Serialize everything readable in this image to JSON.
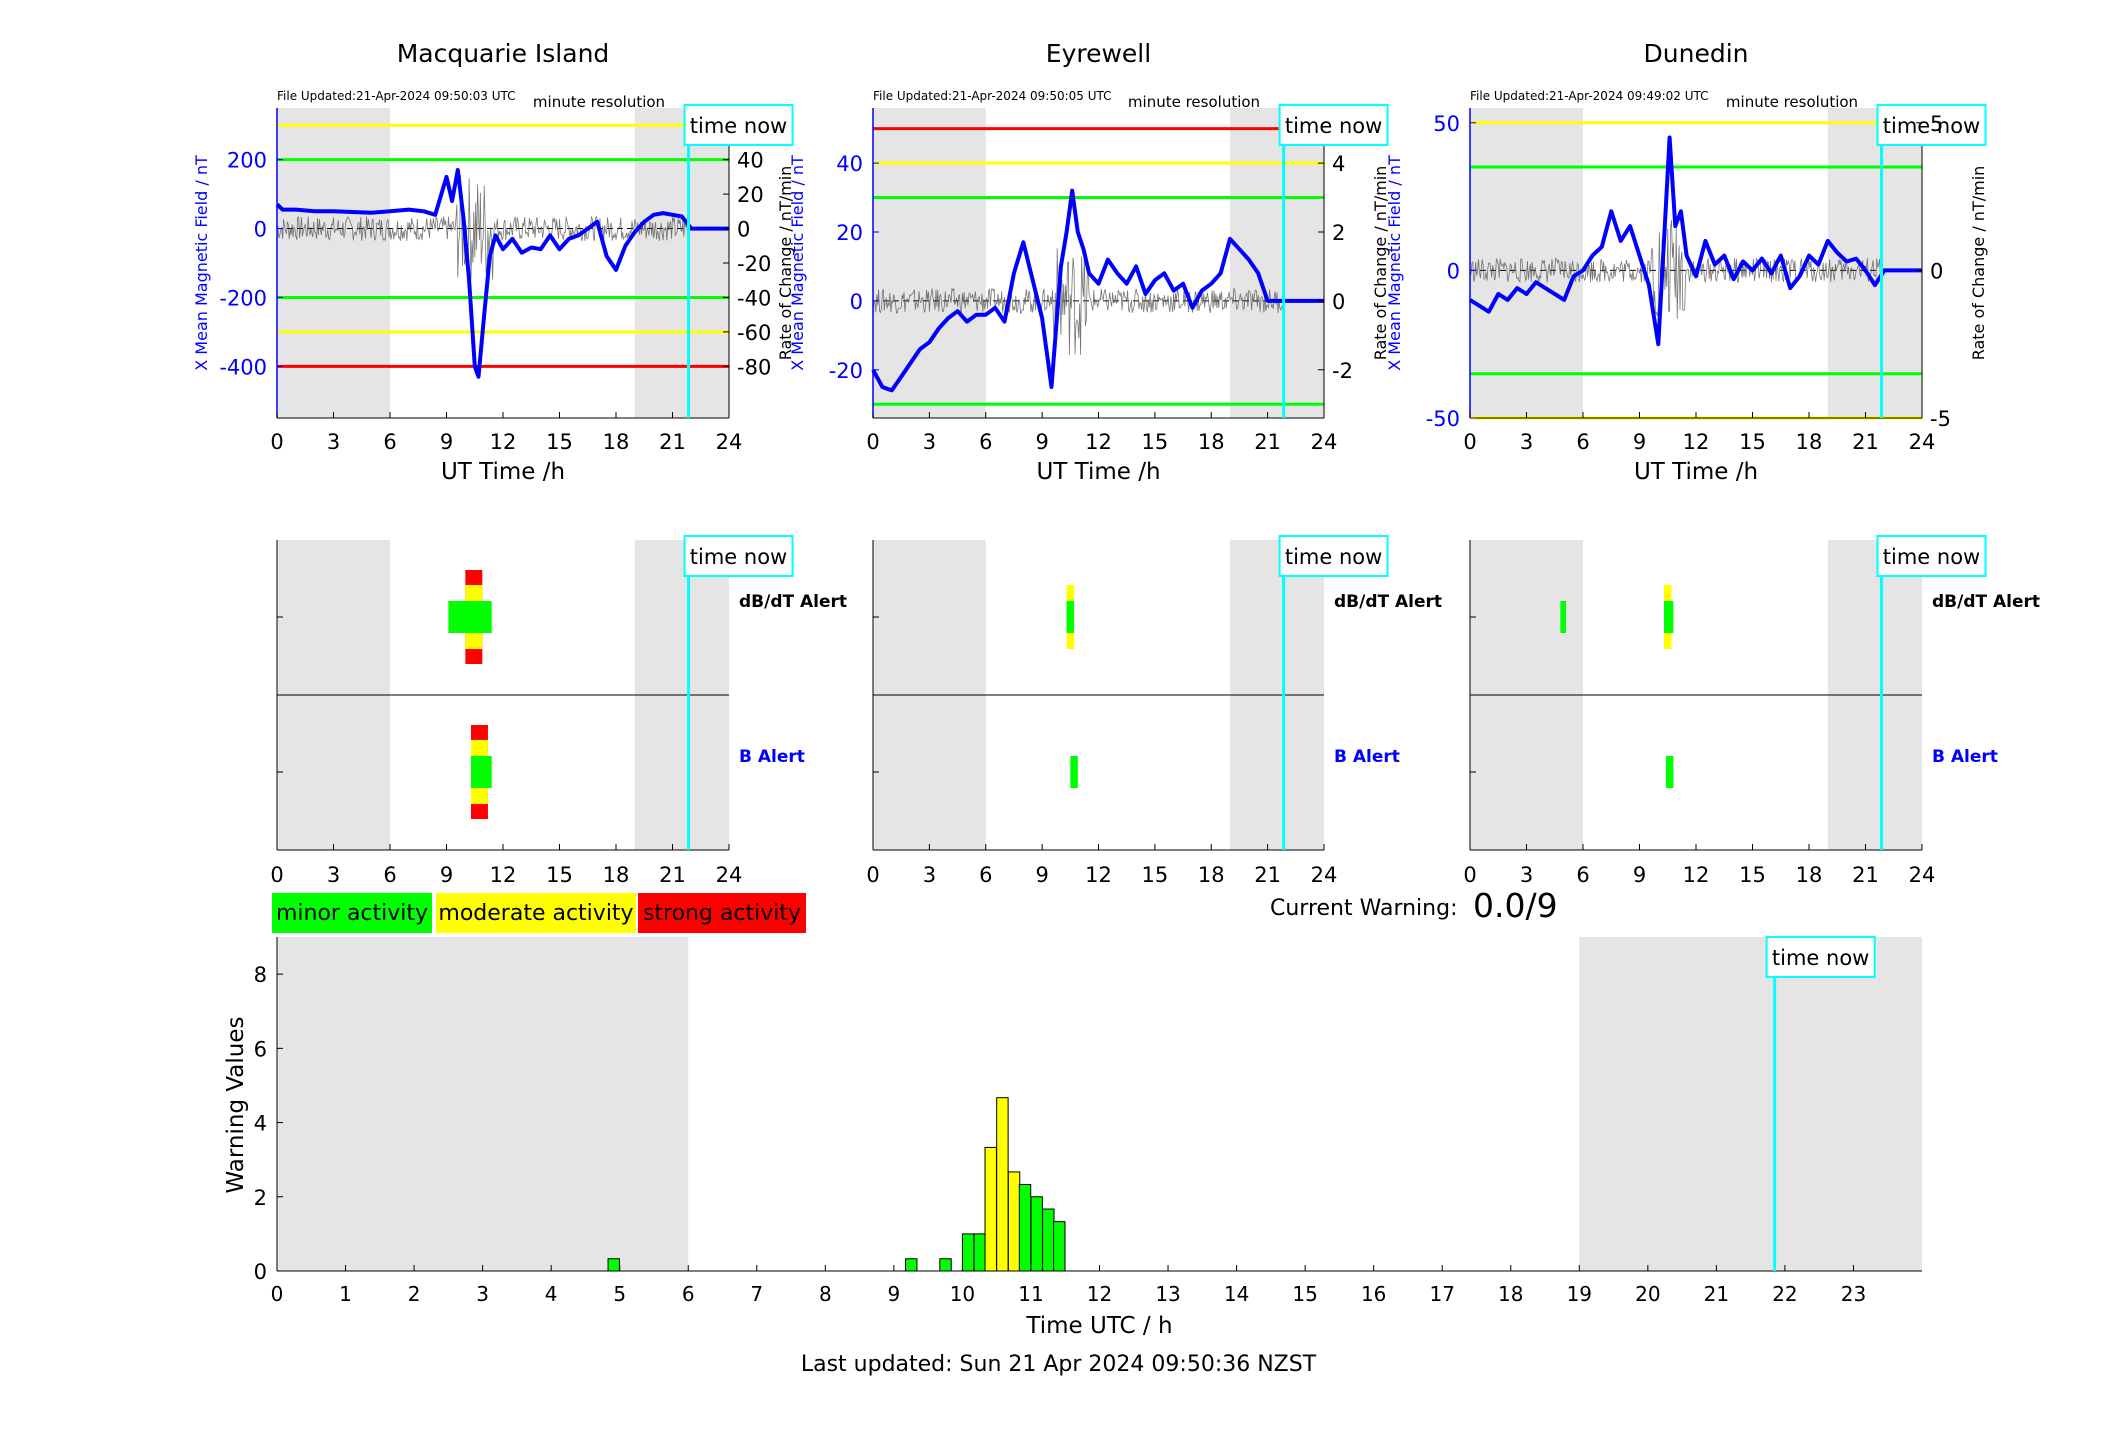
{
  "footer": "Last updated: Sun 21 Apr 2024 09:50:36 NZST",
  "current_warning": {
    "label": "Current Warning:",
    "value": "0.0/9"
  },
  "legend": [
    {
      "label": "minor activity",
      "color": "#00ff00"
    },
    {
      "label": "moderate activity",
      "color": "#ffff00"
    },
    {
      "label": "strong activity",
      "color": "#ff0000"
    }
  ],
  "colors": {
    "green": "#00ff00",
    "yellow": "#ffff00",
    "red": "#ff0000",
    "field": "#0000ff",
    "timenow": "#00ffff",
    "shade": "#e5e5e5"
  },
  "time_now_label": "time now",
  "minute_resolution_label": "minute resolution",
  "time_now_hours": 21.85,
  "chart_data": [
    {
      "type": "line",
      "title": "Macquarie Island",
      "file_updated": "File Updated:21-Apr-2024 09:50:03 UTC",
      "xlabel": "UT Time /h",
      "ylabel": "X Mean Magnetic Field / nT",
      "y2label": "Rate of Change / nT/min",
      "xlim": [
        0,
        24
      ],
      "xticks": [
        0,
        3,
        6,
        9,
        12,
        15,
        18,
        21,
        24
      ],
      "ylim": [
        -550,
        350
      ],
      "yticks": [
        -400,
        -200,
        0,
        200
      ],
      "y2lim": [
        -110,
        70
      ],
      "y2ticks": [
        -80,
        -60,
        -40,
        -20,
        0,
        20,
        40
      ],
      "shaded_night": [
        [
          0,
          6
        ],
        [
          19,
          24
        ]
      ],
      "thresholds": [
        {
          "value": 300,
          "level": "moderate"
        },
        {
          "value": 200,
          "level": "minor"
        },
        {
          "value": -200,
          "level": "minor"
        },
        {
          "value": -300,
          "level": "moderate"
        },
        {
          "value": -400,
          "level": "strong"
        }
      ],
      "series": [
        {
          "x": [
            0,
            0.3,
            1,
            2,
            3,
            4,
            5,
            6,
            7,
            7.8,
            8.4,
            9,
            9.3,
            9.6,
            9.9,
            10.2,
            10.5,
            10.7,
            11,
            11.3,
            11.6,
            12,
            12.5,
            13,
            13.5,
            14,
            14.5,
            15,
            15.5,
            16,
            16.5,
            17,
            17.5,
            18,
            18.5,
            19,
            19.5,
            20,
            20.5,
            21,
            21.5,
            22,
            24
          ],
          "values": [
            70,
            55,
            55,
            50,
            50,
            48,
            46,
            50,
            55,
            50,
            40,
            150,
            80,
            170,
            30,
            -150,
            -400,
            -430,
            -250,
            -80,
            -20,
            -60,
            -30,
            -70,
            -55,
            -60,
            -20,
            -60,
            -30,
            -20,
            0,
            20,
            -80,
            -120,
            -50,
            -10,
            20,
            40,
            45,
            40,
            35,
            0,
            0
          ]
        }
      ]
    },
    {
      "type": "line",
      "title": "Eyrewell",
      "file_updated": "File Updated:21-Apr-2024 09:50:05 UTC",
      "xlabel": "UT Time /h",
      "ylabel": "X Mean Magnetic Field / nT",
      "y2label": "Rate of Change / nT/min",
      "xlim": [
        0,
        24
      ],
      "xticks": [
        0,
        3,
        6,
        9,
        12,
        15,
        18,
        21,
        24
      ],
      "ylim": [
        -34,
        56
      ],
      "yticks": [
        -20,
        0,
        20,
        40
      ],
      "y2lim": [
        -3.4,
        5.6
      ],
      "y2ticks": [
        -2,
        0,
        2,
        4
      ],
      "shaded_night": [
        [
          0,
          6
        ],
        [
          19,
          24
        ]
      ],
      "thresholds": [
        {
          "value": 50,
          "level": "strong"
        },
        {
          "value": 40,
          "level": "moderate"
        },
        {
          "value": 30,
          "level": "minor"
        },
        {
          "value": -30,
          "level": "minor"
        }
      ],
      "series": [
        {
          "x": [
            0,
            0.5,
            1,
            1.5,
            2,
            2.5,
            3,
            3.5,
            4,
            4.5,
            5,
            5.5,
            6,
            6.5,
            7,
            7.5,
            8,
            8.5,
            9,
            9.5,
            10,
            10.3,
            10.6,
            10.9,
            11.2,
            11.5,
            12,
            12.5,
            13,
            13.5,
            14,
            14.5,
            15,
            15.5,
            16,
            16.5,
            17,
            17.5,
            18,
            18.5,
            19,
            19.5,
            20,
            20.5,
            21,
            24
          ],
          "values": [
            -20,
            -25,
            -26,
            -22,
            -18,
            -14,
            -12,
            -8,
            -5,
            -3,
            -6,
            -4,
            -4,
            -2,
            -6,
            8,
            17,
            6,
            -5,
            -25,
            10,
            20,
            32,
            20,
            15,
            8,
            5,
            12,
            8,
            5,
            10,
            2,
            6,
            8,
            3,
            5,
            -2,
            3,
            5,
            8,
            18,
            15,
            12,
            8,
            0,
            0
          ]
        }
      ]
    },
    {
      "type": "line",
      "title": "Dunedin",
      "file_updated": "File Updated:21-Apr-2024 09:49:02 UTC",
      "xlabel": "UT Time /h",
      "ylabel": "X Mean Magnetic Field / nT",
      "y2label": "Rate of Change / nT/min",
      "xlim": [
        0,
        24
      ],
      "xticks": [
        0,
        3,
        6,
        9,
        12,
        15,
        18,
        21,
        24
      ],
      "ylim": [
        -50,
        55
      ],
      "yticks": [
        -50,
        0,
        50
      ],
      "y2lim": [
        -5,
        5.5
      ],
      "y2ticks": [
        -5,
        0,
        5
      ],
      "shaded_night": [
        [
          0,
          6
        ],
        [
          19,
          24
        ]
      ],
      "thresholds": [
        {
          "value": 50,
          "level": "moderate"
        },
        {
          "value": 35,
          "level": "minor"
        },
        {
          "value": -35,
          "level": "minor"
        },
        {
          "value": -50,
          "level": "moderate"
        }
      ],
      "series": [
        {
          "x": [
            0,
            0.5,
            1,
            1.5,
            2,
            2.5,
            3,
            3.5,
            4,
            4.5,
            5,
            5.5,
            6,
            6.5,
            7,
            7.5,
            8,
            8.5,
            9,
            9.5,
            10,
            10.3,
            10.6,
            10.9,
            11.2,
            11.5,
            12,
            12.5,
            13,
            13.5,
            14,
            14.5,
            15,
            15.5,
            16,
            16.5,
            17,
            17.5,
            18,
            18.5,
            19,
            19.5,
            20,
            20.5,
            21,
            21.5,
            22,
            24
          ],
          "values": [
            -10,
            -12,
            -14,
            -8,
            -10,
            -6,
            -8,
            -4,
            -6,
            -8,
            -10,
            -2,
            0,
            5,
            8,
            20,
            10,
            15,
            5,
            -5,
            -25,
            10,
            45,
            15,
            20,
            5,
            -2,
            10,
            2,
            5,
            -3,
            3,
            0,
            4,
            -1,
            5,
            -6,
            -2,
            5,
            2,
            10,
            6,
            3,
            4,
            0,
            -5,
            0,
            0
          ]
        }
      ]
    },
    {
      "type": "alert_timeline",
      "title": "Macquarie Island",
      "rows": [
        "dB/dT Alert",
        "B Alert"
      ],
      "xlim": [
        0,
        24
      ],
      "xticks": [
        0,
        3,
        6,
        9,
        12,
        15,
        18,
        21,
        24
      ],
      "shaded_night": [
        [
          0,
          6
        ],
        [
          19,
          24
        ]
      ],
      "blocks": [
        {
          "row": 0,
          "start": 9.1,
          "end": 9.5,
          "level": "minor"
        },
        {
          "row": 0,
          "start": 9.5,
          "end": 11.4,
          "level": "minor"
        },
        {
          "row": 0,
          "start": 10.0,
          "end": 10.9,
          "level": "moderate"
        },
        {
          "row": 0,
          "start": 10.0,
          "end": 10.9,
          "level": "strong"
        },
        {
          "row": 1,
          "start": 10.3,
          "end": 11.2,
          "level": "strong"
        },
        {
          "row": 1,
          "start": 10.3,
          "end": 11.2,
          "level": "moderate"
        },
        {
          "row": 1,
          "start": 10.3,
          "end": 11.4,
          "level": "minor"
        }
      ]
    },
    {
      "type": "alert_timeline",
      "title": "Eyrewell",
      "rows": [
        "dB/dT Alert",
        "B Alert"
      ],
      "xlim": [
        0,
        24
      ],
      "xticks": [
        0,
        3,
        6,
        9,
        12,
        15,
        18,
        21,
        24
      ],
      "shaded_night": [
        [
          0,
          6
        ],
        [
          19,
          24
        ]
      ],
      "blocks": [
        {
          "row": 0,
          "start": 10.3,
          "end": 10.7,
          "level": "moderate"
        },
        {
          "row": 0,
          "start": 10.3,
          "end": 10.7,
          "level": "minor"
        },
        {
          "row": 1,
          "start": 10.5,
          "end": 10.9,
          "level": "minor"
        }
      ]
    },
    {
      "type": "alert_timeline",
      "title": "Dunedin",
      "rows": [
        "dB/dT Alert",
        "B Alert"
      ],
      "xlim": [
        0,
        24
      ],
      "xticks": [
        0,
        3,
        6,
        9,
        12,
        15,
        18,
        21,
        24
      ],
      "shaded_night": [
        [
          0,
          6
        ],
        [
          19,
          24
        ]
      ],
      "blocks": [
        {
          "row": 0,
          "start": 4.8,
          "end": 5.1,
          "level": "minor"
        },
        {
          "row": 0,
          "start": 10.3,
          "end": 10.7,
          "level": "moderate"
        },
        {
          "row": 0,
          "start": 10.3,
          "end": 10.8,
          "level": "minor"
        },
        {
          "row": 1,
          "start": 10.4,
          "end": 10.8,
          "level": "minor"
        }
      ]
    },
    {
      "type": "bar",
      "xlabel": "Time UTC / h",
      "ylabel": "Warning Values",
      "xlim": [
        0,
        24
      ],
      "xticks": [
        0,
        1,
        2,
        3,
        4,
        5,
        6,
        7,
        8,
        9,
        10,
        11,
        12,
        13,
        14,
        15,
        16,
        17,
        18,
        19,
        20,
        21,
        22,
        23
      ],
      "ylim": [
        0,
        9
      ],
      "yticks": [
        0,
        2,
        4,
        6,
        8
      ],
      "shaded_night": [
        [
          0,
          6
        ],
        [
          19,
          24
        ]
      ],
      "bar_width": 0.1667,
      "bars": [
        {
          "x": 4.83,
          "value": 0.33,
          "level": "minor"
        },
        {
          "x": 9.17,
          "value": 0.33,
          "level": "minor"
        },
        {
          "x": 9.67,
          "value": 0.33,
          "level": "minor"
        },
        {
          "x": 10.0,
          "value": 1.0,
          "level": "minor"
        },
        {
          "x": 10.17,
          "value": 1.0,
          "level": "minor"
        },
        {
          "x": 10.33,
          "value": 3.33,
          "level": "moderate"
        },
        {
          "x": 10.5,
          "value": 4.67,
          "level": "moderate"
        },
        {
          "x": 10.67,
          "value": 2.67,
          "level": "moderate"
        },
        {
          "x": 10.83,
          "value": 2.33,
          "level": "minor"
        },
        {
          "x": 11.0,
          "value": 2.0,
          "level": "minor"
        },
        {
          "x": 11.17,
          "value": 1.67,
          "level": "minor"
        },
        {
          "x": 11.33,
          "value": 1.33,
          "level": "minor"
        }
      ]
    }
  ]
}
